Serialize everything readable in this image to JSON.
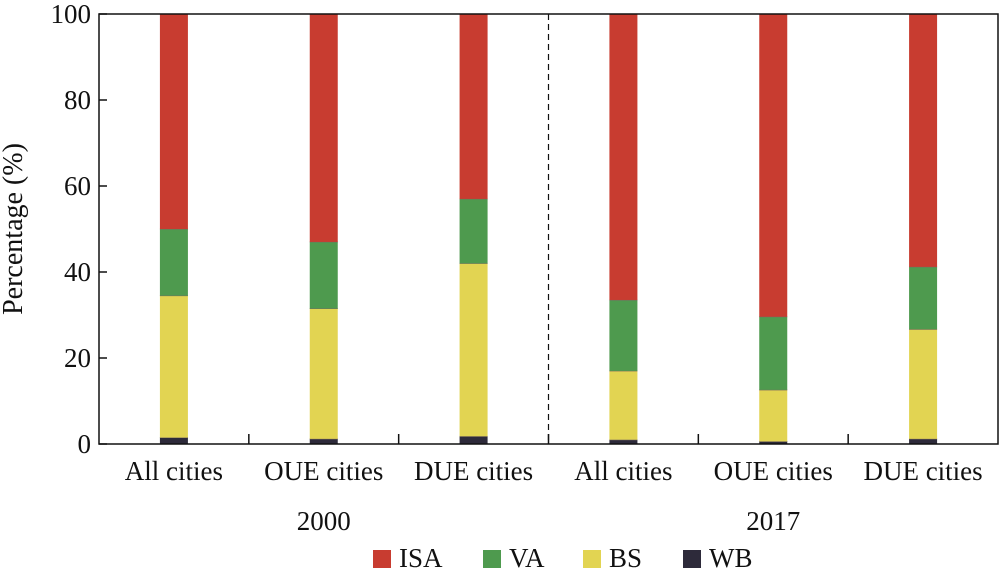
{
  "chart_data": {
    "type": "bar",
    "stacked": true,
    "ylabel": "Percentage (%)",
    "ylim": [
      0,
      100
    ],
    "yticks": [
      0,
      20,
      40,
      60,
      80,
      100
    ],
    "categories": [
      "All cities",
      "OUE cities",
      "DUE cities",
      "All cities",
      "OUE cities",
      "DUE cities"
    ],
    "groups": [
      {
        "label": "2000",
        "category_count": 3
      },
      {
        "label": "2017",
        "category_count": 3
      }
    ],
    "series": [
      {
        "name": "WB",
        "color": "#2d2a3a",
        "values": [
          1.5,
          1.2,
          1.8,
          1.0,
          0.6,
          1.2
        ]
      },
      {
        "name": "BS",
        "color": "#e2d452",
        "values": [
          33.0,
          30.3,
          40.2,
          16.0,
          12.0,
          25.5
        ]
      },
      {
        "name": "VA",
        "color": "#4e9a4e",
        "values": [
          15.5,
          15.5,
          15.0,
          16.5,
          17.0,
          14.5
        ]
      },
      {
        "name": "ISA",
        "color": "#c83c30",
        "values": [
          50.0,
          53.0,
          43.0,
          66.5,
          70.4,
          58.8
        ]
      }
    ],
    "legend": {
      "placement": "bottom",
      "order": [
        "ISA",
        "VA",
        "BS",
        "WB"
      ]
    },
    "grid": false
  }
}
